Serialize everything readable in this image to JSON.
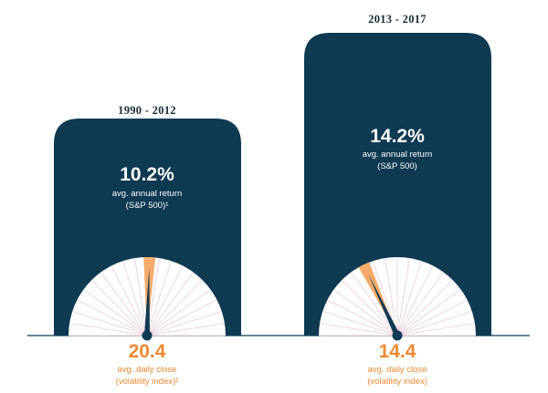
{
  "colors": {
    "panel": "#0e3a52",
    "accent": "#f6ab6a",
    "accent_text": "#ef8833",
    "needle": "#0e3a52",
    "tick": "#e9cdd8",
    "baseline": "#0e3a52"
  },
  "chart_data": [
    {
      "type": "gauge",
      "period": "1990 - 2012",
      "annual_return": {
        "value": 10.2,
        "display": "10.2%",
        "label": "avg. annual return",
        "source": "(S&P 500)¹"
      },
      "volatility": {
        "value": 20.4,
        "display": "20.4",
        "label": "avg. daily close",
        "source": "(volatility index)²"
      }
    },
    {
      "type": "gauge",
      "period": "2013 - 2017",
      "annual_return": {
        "value": 14.2,
        "display": "14.2%",
        "label": "avg. annual return",
        "source": "(S&P 500)"
      },
      "volatility": {
        "value": 14.4,
        "display": "14.4",
        "label": "avg. daily close",
        "source": "(volatility index)"
      }
    }
  ]
}
